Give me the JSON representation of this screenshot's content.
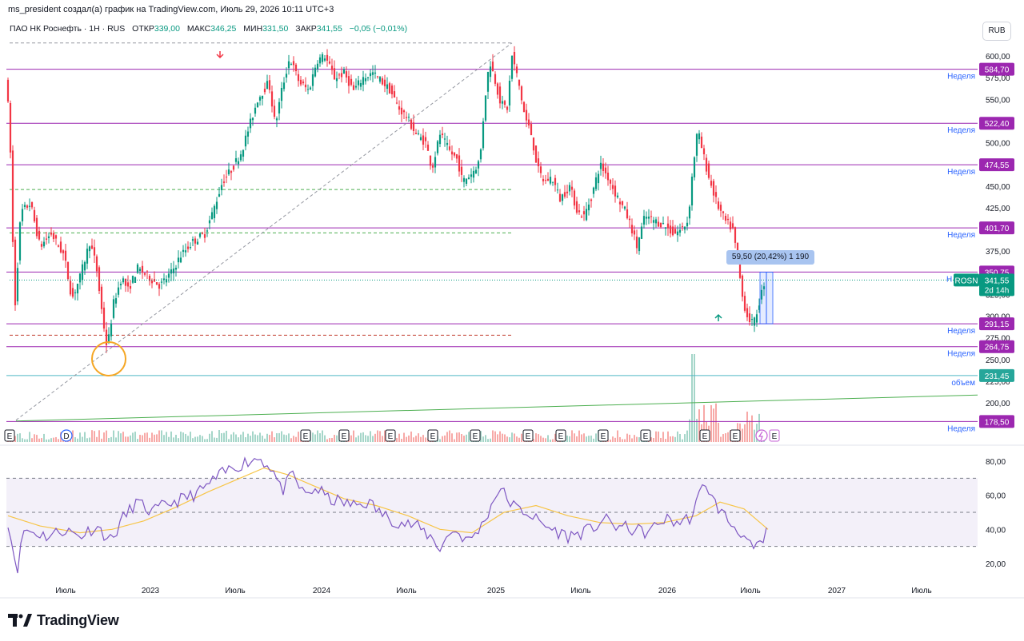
{
  "header": {
    "attribution": "ms_president создал(а) график на TradingView.com, Июль 29, 2026 10:11 UTC+3"
  },
  "legend": {
    "symbol": "ПАО НК Роснефть · 1H · RUS",
    "open_label": "ОТКР",
    "open": "339,00",
    "high_label": "МАКС",
    "high": "346,25",
    "low_label": "МИН",
    "low": "331,50",
    "close_label": "ЗАКР",
    "close": "341,55",
    "change": "−0,05 (−0,01%)"
  },
  "currency_button": "RUB",
  "brand": {
    "name": "TradingView"
  },
  "colors": {
    "up": "#089981",
    "down": "#f23645",
    "level": "#9c27b0",
    "rsi": "#7e57c2",
    "rsi_ma": "#f7c548",
    "teal": "#4fb6c4",
    "trend": "#4caf50"
  },
  "measure": {
    "text": "59,50 (20,42%) 1 190"
  },
  "ticker_tag": {
    "symbol": "ROSN",
    "price": "341,55",
    "countdown": "2d 14h"
  },
  "chart_data": {
    "type": "candlestick",
    "price_axis": {
      "ticks": [
        "600,00",
        "575,00",
        "550,00",
        "525,00",
        "500,00",
        "475,00",
        "450,00",
        "425,00",
        "400,00",
        "375,00",
        "350,00",
        "325,00",
        "300,00",
        "275,00",
        "250,00",
        "225,00",
        "200,00"
      ],
      "range": [
        172,
        632
      ]
    },
    "time_axis": {
      "ticks": [
        "Июль",
        "2023",
        "Июль",
        "2024",
        "Июль",
        "2025",
        "Июль",
        "2026",
        "Июль",
        "2027",
        "Июль"
      ]
    },
    "levels": [
      {
        "price": 584.7,
        "label": "584,70",
        "note": "Неделя"
      },
      {
        "price": 522.4,
        "label": "522,40",
        "note": "Неделя"
      },
      {
        "price": 474.55,
        "label": "474,55",
        "note": "Неделя"
      },
      {
        "price": 401.7,
        "label": "401,70",
        "note": "Неделя"
      },
      {
        "price": 350.75,
        "label": "350,75",
        "note": "Н"
      },
      {
        "price": 291.15,
        "label": "291,15",
        "note": "Неделя"
      },
      {
        "price": 264.75,
        "label": "264,75",
        "note": "Неделя"
      },
      {
        "price": 178.5,
        "label": "178,50",
        "note": "Неделя"
      }
    ],
    "extra_level": {
      "price": 231.45,
      "label": "231,45",
      "note": "объем"
    },
    "dashed_levels": [
      615,
      446,
      396,
      278
    ],
    "path": [
      [
        0,
        560
      ],
      [
        8,
        580
      ],
      [
        14,
        470
      ],
      [
        18,
        300
      ],
      [
        26,
        420
      ],
      [
        38,
        430
      ],
      [
        50,
        380
      ],
      [
        64,
        395
      ],
      [
        80,
        370
      ],
      [
        90,
        320
      ],
      [
        100,
        345
      ],
      [
        112,
        385
      ],
      [
        120,
        360
      ],
      [
        128,
        300
      ],
      [
        134,
        262
      ],
      [
        142,
        315
      ],
      [
        152,
        345
      ],
      [
        160,
        330
      ],
      [
        172,
        355
      ],
      [
        186,
        345
      ],
      [
        200,
        335
      ],
      [
        214,
        350
      ],
      [
        226,
        370
      ],
      [
        240,
        385
      ],
      [
        256,
        395
      ],
      [
        266,
        420
      ],
      [
        278,
        455
      ],
      [
        290,
        470
      ],
      [
        302,
        490
      ],
      [
        312,
        520
      ],
      [
        322,
        550
      ],
      [
        336,
        570
      ],
      [
        344,
        520
      ],
      [
        352,
        560
      ],
      [
        362,
        598
      ],
      [
        374,
        570
      ],
      [
        386,
        560
      ],
      [
        396,
        595
      ],
      [
        406,
        600
      ],
      [
        418,
        575
      ],
      [
        430,
        580
      ],
      [
        442,
        560
      ],
      [
        454,
        575
      ],
      [
        466,
        580
      ],
      [
        478,
        570
      ],
      [
        488,
        560
      ],
      [
        498,
        540
      ],
      [
        508,
        530
      ],
      [
        520,
        510
      ],
      [
        532,
        500
      ],
      [
        540,
        470
      ],
      [
        550,
        510
      ],
      [
        562,
        490
      ],
      [
        572,
        480
      ],
      [
        578,
        455
      ],
      [
        590,
        465
      ],
      [
        600,
        480
      ],
      [
        606,
        550
      ],
      [
        612,
        595
      ],
      [
        618,
        575
      ],
      [
        626,
        545
      ],
      [
        634,
        540
      ],
      [
        640,
        600
      ],
      [
        648,
        570
      ],
      [
        656,
        530
      ],
      [
        664,
        510
      ],
      [
        672,
        470
      ],
      [
        680,
        455
      ],
      [
        690,
        460
      ],
      [
        700,
        435
      ],
      [
        712,
        450
      ],
      [
        722,
        420
      ],
      [
        730,
        415
      ],
      [
        740,
        440
      ],
      [
        750,
        475
      ],
      [
        760,
        460
      ],
      [
        770,
        440
      ],
      [
        782,
        420
      ],
      [
        790,
        400
      ],
      [
        796,
        380
      ],
      [
        806,
        415
      ],
      [
        818,
        410
      ],
      [
        830,
        405
      ],
      [
        842,
        395
      ],
      [
        852,
        400
      ],
      [
        860,
        410
      ],
      [
        866,
        470
      ],
      [
        872,
        515
      ],
      [
        878,
        490
      ],
      [
        886,
        460
      ],
      [
        896,
        430
      ],
      [
        906,
        410
      ],
      [
        916,
        400
      ],
      [
        924,
        350
      ],
      [
        928,
        322
      ],
      [
        934,
        300
      ],
      [
        942,
        290
      ],
      [
        950,
        320
      ],
      [
        956,
        341.55
      ]
    ],
    "volume": {
      "label": "объем"
    },
    "rsi": {
      "ticks": [
        "80,00",
        "60,00",
        "40,00",
        "20,00"
      ],
      "upper": 70,
      "middle": 50,
      "lower": 30,
      "path": [
        [
          0,
          45
        ],
        [
          6,
          28
        ],
        [
          12,
          18
        ],
        [
          20,
          40
        ],
        [
          34,
          38
        ],
        [
          50,
          36
        ],
        [
          70,
          40
        ],
        [
          90,
          36
        ],
        [
          110,
          42
        ],
        [
          130,
          33
        ],
        [
          140,
          44
        ],
        [
          160,
          56
        ],
        [
          180,
          50
        ],
        [
          200,
          55
        ],
        [
          220,
          58
        ],
        [
          240,
          62
        ],
        [
          260,
          70
        ],
        [
          280,
          76
        ],
        [
          300,
          80
        ],
        [
          314,
          82
        ],
        [
          330,
          76
        ],
        [
          342,
          62
        ],
        [
          356,
          72
        ],
        [
          370,
          60
        ],
        [
          386,
          64
        ],
        [
          400,
          58
        ],
        [
          416,
          56
        ],
        [
          432,
          54
        ],
        [
          450,
          56
        ],
        [
          470,
          48
        ],
        [
          490,
          44
        ],
        [
          510,
          42
        ],
        [
          530,
          35
        ],
        [
          540,
          29
        ],
        [
          556,
          40
        ],
        [
          576,
          33
        ],
        [
          592,
          42
        ],
        [
          606,
          56
        ],
        [
          614,
          65
        ],
        [
          624,
          58
        ],
        [
          636,
          52
        ],
        [
          650,
          50
        ],
        [
          664,
          44
        ],
        [
          680,
          40
        ],
        [
          700,
          36
        ],
        [
          716,
          38
        ],
        [
          730,
          40
        ],
        [
          744,
          46
        ],
        [
          760,
          42
        ],
        [
          780,
          40
        ],
        [
          800,
          38
        ],
        [
          820,
          46
        ],
        [
          840,
          44
        ],
        [
          856,
          48
        ],
        [
          864,
          60
        ],
        [
          872,
          68
        ],
        [
          880,
          58
        ],
        [
          892,
          50
        ],
        [
          906,
          42
        ],
        [
          918,
          38
        ],
        [
          926,
          30
        ],
        [
          934,
          28
        ],
        [
          942,
          31
        ],
        [
          950,
          40
        ]
      ],
      "ma_path": [
        [
          0,
          48
        ],
        [
          40,
          42
        ],
        [
          90,
          38
        ],
        [
          130,
          40
        ],
        [
          170,
          45
        ],
        [
          210,
          53
        ],
        [
          250,
          62
        ],
        [
          290,
          70
        ],
        [
          320,
          76
        ],
        [
          350,
          72
        ],
        [
          380,
          66
        ],
        [
          420,
          58
        ],
        [
          460,
          54
        ],
        [
          500,
          48
        ],
        [
          540,
          40
        ],
        [
          580,
          38
        ],
        [
          620,
          50
        ],
        [
          660,
          54
        ],
        [
          700,
          48
        ],
        [
          740,
          44
        ],
        [
          780,
          43
        ],
        [
          820,
          44
        ],
        [
          860,
          48
        ],
        [
          890,
          56
        ],
        [
          920,
          52
        ],
        [
          950,
          40
        ]
      ]
    }
  }
}
